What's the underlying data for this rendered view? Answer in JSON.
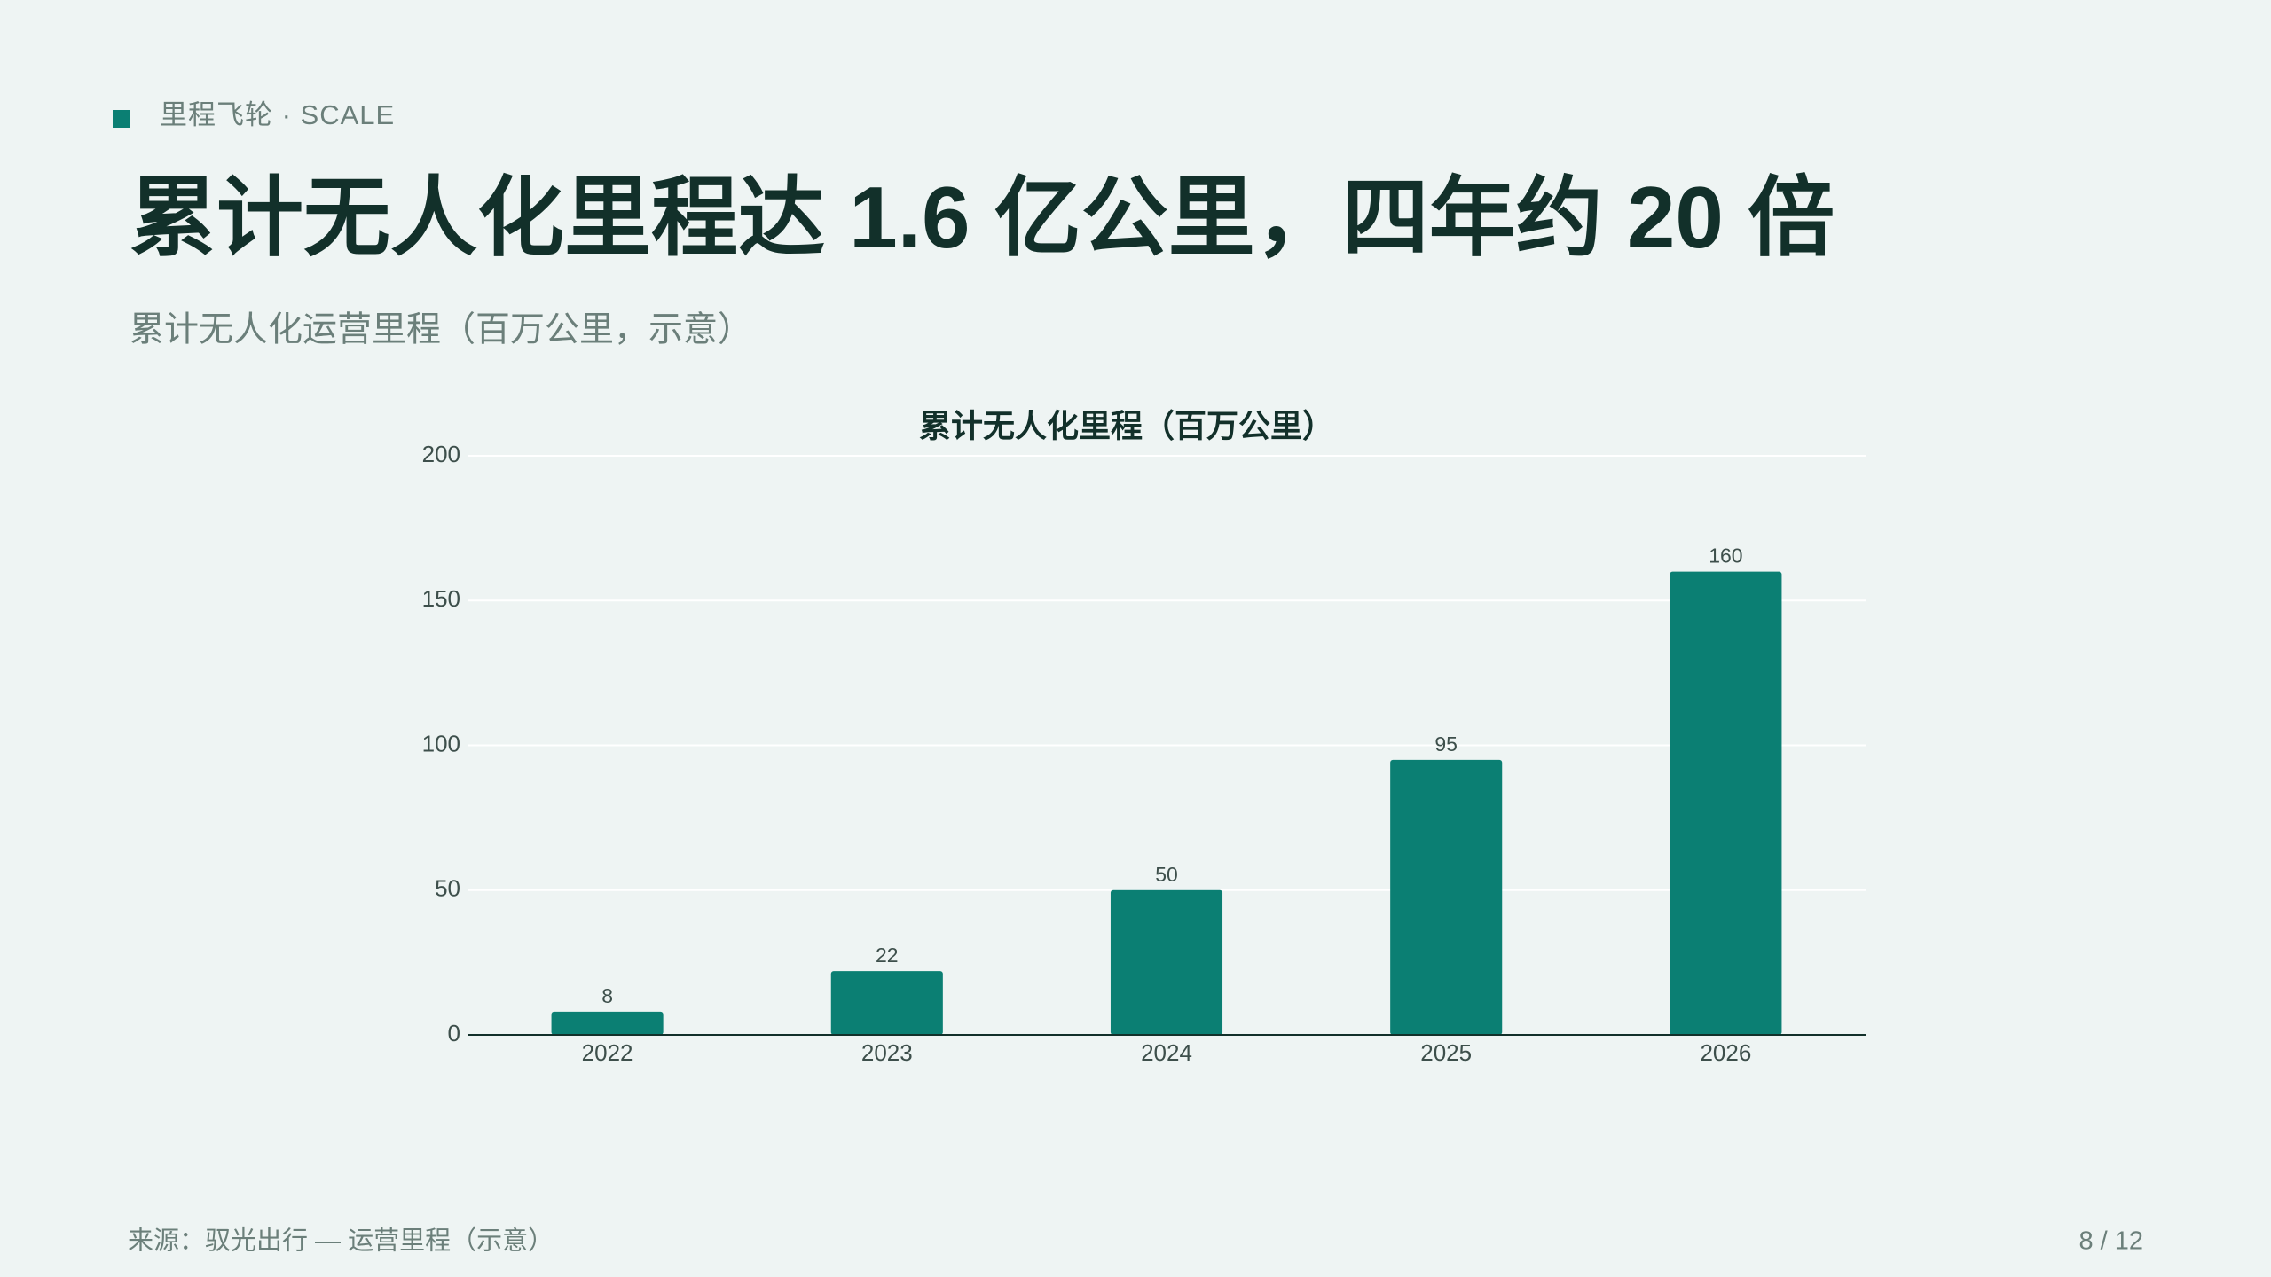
{
  "header": {
    "kicker": "里程飞轮 · SCALE",
    "title": "累计无人化里程达 1.6 亿公里，四年约 20 倍",
    "subtitle": "累计无人化运营里程（百万公里，示意）"
  },
  "chart_data": {
    "type": "bar",
    "title": "累计无人化里程（百万公里）",
    "categories": [
      "2022",
      "2023",
      "2024",
      "2025",
      "2026"
    ],
    "values": [
      8,
      22,
      50,
      95,
      160
    ],
    "color": "#0b7f73",
    "ylim": [
      0,
      200
    ],
    "yticks": [
      0,
      50,
      100,
      150,
      200
    ],
    "grid": true
  },
  "footer": {
    "source": "来源：驭光出行 — 运营里程（示意）",
    "page": "8 / 12"
  }
}
